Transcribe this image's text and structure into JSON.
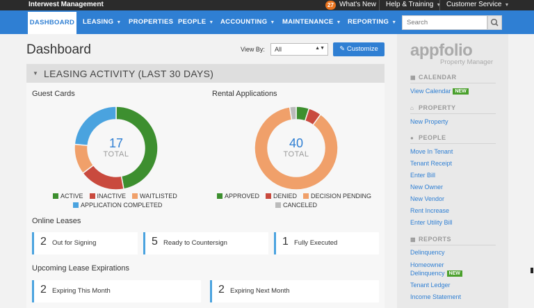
{
  "topbar": {
    "company": "Interwest Management",
    "notification_count": "27",
    "whats_new": "What's New",
    "help": "Help & Training",
    "customer_service": "Customer Service"
  },
  "nav": {
    "tabs": [
      {
        "label": "DASHBOARD"
      },
      {
        "label": "LEASING"
      },
      {
        "label": "PROPERTIES"
      },
      {
        "label": "PEOPLE"
      },
      {
        "label": "ACCOUNTING"
      },
      {
        "label": "MAINTENANCE"
      },
      {
        "label": "REPORTING"
      }
    ],
    "search_placeholder": "Search"
  },
  "header": {
    "title": "Dashboard",
    "view_by_label": "View By:",
    "view_by_value": "All",
    "customize_label": "Customize"
  },
  "leasing": {
    "panel_title": "LEASING ACTIVITY (LAST 30 DAYS)",
    "guest_cards": {
      "title": "Guest Cards",
      "total": "17",
      "total_label": "TOTAL",
      "legend": [
        "ACTIVE",
        "INACTIVE",
        "WAITLISTED",
        "APPLICATION COMPLETED"
      ]
    },
    "rental_applications": {
      "title": "Rental Applications",
      "total": "40",
      "total_label": "TOTAL",
      "legend": [
        "APPROVED",
        "DENIED",
        "DECISION PENDING",
        "CANCELED"
      ]
    },
    "online_leases": {
      "title": "Online Leases",
      "cards": [
        {
          "count": "2",
          "label": "Out for Signing"
        },
        {
          "count": "5",
          "label": "Ready to Countersign"
        },
        {
          "count": "1",
          "label": "Fully Executed"
        }
      ]
    },
    "expirations": {
      "title": "Upcoming Lease Expirations",
      "cards": [
        {
          "count": "2",
          "label": "Expiring This Month"
        },
        {
          "count": "2",
          "label": "Expiring Next Month"
        }
      ]
    }
  },
  "chart_data": [
    {
      "type": "pie",
      "title": "Guest Cards",
      "categories": [
        "ACTIVE",
        "INACTIVE",
        "WAITLISTED",
        "APPLICATION COMPLETED"
      ],
      "values": [
        8,
        3,
        2,
        4
      ],
      "colors": [
        "#3d8f2f",
        "#c94a3e",
        "#f0a06a",
        "#4aa3df"
      ]
    },
    {
      "type": "pie",
      "title": "Rental Applications",
      "categories": [
        "APPROVED",
        "DENIED",
        "DECISION PENDING",
        "CANCELED"
      ],
      "values": [
        2,
        2,
        35,
        1
      ],
      "colors": [
        "#3d8f2f",
        "#c94a3e",
        "#f0a06a",
        "#bbbbbb"
      ]
    }
  ],
  "sidebar": {
    "logo": "appfolio",
    "logo_sub": "Property Manager",
    "calendar": {
      "heading": "CALENDAR",
      "links": [
        "View Calendar"
      ],
      "new_badge": "NEW"
    },
    "property": {
      "heading": "PROPERTY",
      "links": [
        "New Property"
      ]
    },
    "people": {
      "heading": "PEOPLE",
      "links": [
        "Move In Tenant",
        "Tenant Receipt",
        "Enter Bill",
        "New Owner",
        "New Vendor",
        "Rent Increase",
        "Enter Utility Bill"
      ]
    },
    "reports": {
      "heading": "REPORTS",
      "links": [
        "Delinquency",
        "Homeowner",
        "Delinquency",
        "Tenant Ledger",
        "Income Statement"
      ],
      "new_badge": "NEW"
    }
  },
  "colors": {
    "nav_blue": "#2f7fd3",
    "active": "#3d8f2f",
    "inactive": "#c94a3e",
    "pending": "#f0a06a",
    "completed": "#4aa3df"
  }
}
